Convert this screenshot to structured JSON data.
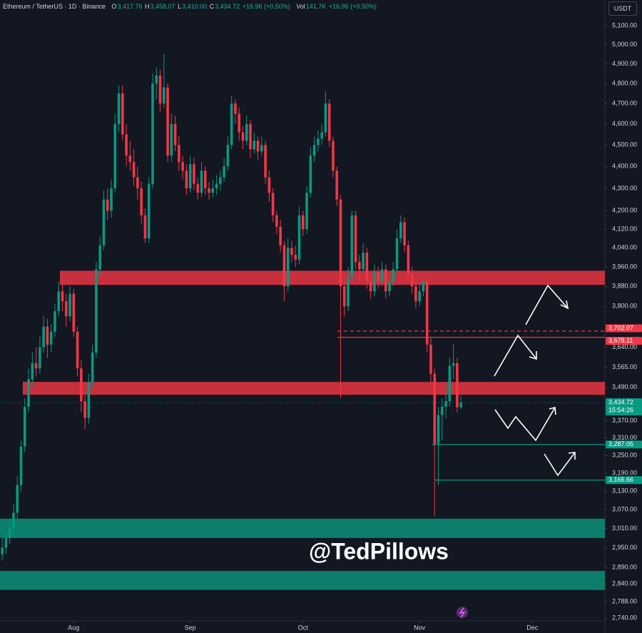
{
  "chart_data": {
    "type": "candlestick",
    "header": {
      "symbol": "Ethereum / TetherUS · 1D · Binance",
      "o_label": "O",
      "o": "3,417.76",
      "h_label": "H",
      "h": "3,458.07",
      "l_label": "L",
      "l": "3,410.00",
      "c_label": "C",
      "c": "3,434.72",
      "change": "+16.96 (+0.50%)",
      "vol_label": "Vol",
      "vol": "141.7K",
      "vol_change": "+16.96 (+0.50%)"
    },
    "currency": "USDT",
    "watermark": "@TedPillows",
    "up_color": "#089981",
    "down_color": "#f23645",
    "log_scale": true,
    "xlim": [
      -0.6,
      160.3
    ],
    "ylim": [
      2732,
      5239
    ],
    "xticks": [
      {
        "value": 19,
        "label": "Aug"
      },
      {
        "value": 50,
        "label": "Sep"
      },
      {
        "value": 80,
        "label": "Oct"
      },
      {
        "value": 111,
        "label": "Nov"
      },
      {
        "value": 141,
        "label": "Dec"
      }
    ],
    "yticks": [
      {
        "value": 5100,
        "label": "5,100.00"
      },
      {
        "value": 5000,
        "label": "5,000.00"
      },
      {
        "value": 4900,
        "label": "4,900.00"
      },
      {
        "value": 4800,
        "label": "4,800.00"
      },
      {
        "value": 4700,
        "label": "4,700.00"
      },
      {
        "value": 4600,
        "label": "4,600.00"
      },
      {
        "value": 4500,
        "label": "4,500.00"
      },
      {
        "value": 4400,
        "label": "4,400.00"
      },
      {
        "value": 4300,
        "label": "4,300.00"
      },
      {
        "value": 4200,
        "label": "4,200.00"
      },
      {
        "value": 4120,
        "label": "4,120.00"
      },
      {
        "value": 4040,
        "label": "4,040.00"
      },
      {
        "value": 3960,
        "label": "3,960.00"
      },
      {
        "value": 3880,
        "label": "3,880.00"
      },
      {
        "value": 3800,
        "label": "3,800.00"
      },
      {
        "value": 3640,
        "label": "3,640.00"
      },
      {
        "value": 3565,
        "label": "3,565.00"
      },
      {
        "value": 3490,
        "label": "3,490.00"
      },
      {
        "value": 3370,
        "label": "3,370.00"
      },
      {
        "value": 3310,
        "label": "3,310.00"
      },
      {
        "value": 3250,
        "label": "3,250.00"
      },
      {
        "value": 3190,
        "label": "3,190.00"
      },
      {
        "value": 3130,
        "label": "3,130.00"
      },
      {
        "value": 3070,
        "label": "3,070.00"
      },
      {
        "value": 3010,
        "label": "3,010.00"
      },
      {
        "value": 2950,
        "label": "2,950.00"
      },
      {
        "value": 2890,
        "label": "2,890.00"
      },
      {
        "value": 2840,
        "label": "2,840.00"
      },
      {
        "value": 2788,
        "label": "2,788.00"
      },
      {
        "value": 2740,
        "label": "2,740.00"
      }
    ],
    "zones": [
      {
        "low": 3886,
        "high": 3944,
        "color": "#c8303d"
      },
      {
        "low": 3463,
        "high": 3510,
        "color": "#c8303d"
      },
      {
        "low": 2980,
        "high": 3041,
        "color": "#0b7e6c"
      },
      {
        "low": 2822,
        "high": 2879,
        "color": "#0b7e6c"
      }
    ],
    "levels": [
      {
        "value": 3702.07,
        "label": "3,702.07",
        "color": "#f23645",
        "style": "dashed"
      },
      {
        "value": 3678.11,
        "label": "3,678.11",
        "color": "#f23645",
        "style": "solid"
      },
      {
        "value": 3287.05,
        "label": "3,287.05",
        "color": "#089981",
        "style": "solid"
      },
      {
        "value": 3166.66,
        "label": "3,166.66",
        "color": "#089981",
        "style": "solid"
      }
    ],
    "last": {
      "value": 3434.72,
      "label": "3,434.72",
      "countdown": "15:54:26"
    },
    "ohlc": [
      [
        2930,
        2980,
        2910,
        2950
      ],
      [
        2950,
        3000,
        2930,
        2980
      ],
      [
        2980,
        3040,
        2960,
        3010
      ],
      [
        3010,
        3090,
        2990,
        3060
      ],
      [
        3060,
        3180,
        3040,
        3150
      ],
      [
        3150,
        3300,
        3130,
        3280
      ],
      [
        3280,
        3450,
        3260,
        3420
      ],
      [
        3420,
        3560,
        3400,
        3520
      ],
      [
        3520,
        3620,
        3490,
        3580
      ],
      [
        3580,
        3640,
        3530,
        3560
      ],
      [
        3560,
        3680,
        3540,
        3640
      ],
      [
        3640,
        3760,
        3620,
        3720
      ],
      [
        3720,
        3750,
        3600,
        3650
      ],
      [
        3650,
        3730,
        3620,
        3700
      ],
      [
        3700,
        3810,
        3680,
        3780
      ],
      [
        3780,
        3900,
        3760,
        3860
      ],
      [
        3860,
        3890,
        3780,
        3820
      ],
      [
        3820,
        3850,
        3720,
        3760
      ],
      [
        3760,
        3880,
        3740,
        3850
      ],
      [
        3850,
        3870,
        3680,
        3700
      ],
      [
        3700,
        3720,
        3530,
        3560
      ],
      [
        3560,
        3590,
        3400,
        3440
      ],
      [
        3440,
        3470,
        3340,
        3380
      ],
      [
        3380,
        3540,
        3360,
        3510
      ],
      [
        3510,
        3650,
        3490,
        3620
      ],
      [
        3620,
        3980,
        3600,
        3950
      ],
      [
        3950,
        4090,
        3920,
        4050
      ],
      [
        4050,
        4290,
        4030,
        4250
      ],
      [
        4250,
        4300,
        4160,
        4200
      ],
      [
        4200,
        4340,
        4170,
        4300
      ],
      [
        4300,
        4650,
        4280,
        4600
      ],
      [
        4600,
        4790,
        4560,
        4750
      ],
      [
        4750,
        4790,
        4520,
        4550
      ],
      [
        4550,
        4600,
        4400,
        4450
      ],
      [
        4450,
        4520,
        4380,
        4420
      ],
      [
        4420,
        4480,
        4310,
        4350
      ],
      [
        4350,
        4400,
        4250,
        4300
      ],
      [
        4300,
        4330,
        4140,
        4180
      ],
      [
        4180,
        4210,
        4060,
        4080
      ],
      [
        4080,
        4350,
        4060,
        4320
      ],
      [
        4320,
        4850,
        4300,
        4800
      ],
      [
        4800,
        4880,
        4720,
        4840
      ],
      [
        4840,
        4870,
        4660,
        4700
      ],
      [
        4700,
        4950,
        4680,
        4780
      ],
      [
        4780,
        4800,
        4420,
        4450
      ],
      [
        4450,
        4650,
        4420,
        4600
      ],
      [
        4600,
        4640,
        4470,
        4500
      ],
      [
        4500,
        4540,
        4380,
        4420
      ],
      [
        4420,
        4450,
        4340,
        4380
      ],
      [
        4380,
        4410,
        4270,
        4300
      ],
      [
        4300,
        4450,
        4280,
        4410
      ],
      [
        4410,
        4440,
        4290,
        4320
      ],
      [
        4320,
        4350,
        4250,
        4280
      ],
      [
        4280,
        4420,
        4260,
        4380
      ],
      [
        4380,
        4400,
        4270,
        4300
      ],
      [
        4300,
        4330,
        4250,
        4280
      ],
      [
        4280,
        4340,
        4260,
        4300
      ],
      [
        4300,
        4360,
        4270,
        4320
      ],
      [
        4320,
        4380,
        4290,
        4350
      ],
      [
        4350,
        4440,
        4330,
        4400
      ],
      [
        4400,
        4540,
        4380,
        4500
      ],
      [
        4500,
        4740,
        4480,
        4700
      ],
      [
        4700,
        4720,
        4600,
        4650
      ],
      [
        4650,
        4680,
        4520,
        4560
      ],
      [
        4560,
        4590,
        4480,
        4520
      ],
      [
        4520,
        4640,
        4500,
        4600
      ],
      [
        4600,
        4620,
        4440,
        4480
      ],
      [
        4480,
        4560,
        4460,
        4520
      ],
      [
        4520,
        4540,
        4430,
        4470
      ],
      [
        4470,
        4540,
        4450,
        4500
      ],
      [
        4500,
        4520,
        4320,
        4350
      ],
      [
        4350,
        4380,
        4240,
        4280
      ],
      [
        4280,
        4300,
        4150,
        4180
      ],
      [
        4180,
        4200,
        4100,
        4130
      ],
      [
        4130,
        4160,
        4020,
        4050
      ],
      [
        4050,
        4070,
        3820,
        3880
      ],
      [
        3880,
        4080,
        3860,
        4040
      ],
      [
        4040,
        4070,
        3980,
        4010
      ],
      [
        4010,
        4050,
        3960,
        3990
      ],
      [
        3990,
        4220,
        3970,
        4180
      ],
      [
        4180,
        4200,
        4090,
        4120
      ],
      [
        4120,
        4310,
        4100,
        4280
      ],
      [
        4280,
        4490,
        4260,
        4450
      ],
      [
        4450,
        4540,
        4420,
        4500
      ],
      [
        4500,
        4570,
        4470,
        4530
      ],
      [
        4530,
        4600,
        4500,
        4560
      ],
      [
        4560,
        4760,
        4540,
        4700
      ],
      [
        4700,
        4720,
        4490,
        4520
      ],
      [
        4520,
        4540,
        4350,
        4380
      ],
      [
        4380,
        4400,
        4220,
        4250
      ],
      [
        4250,
        4270,
        3450,
        3880
      ],
      [
        3880,
        3920,
        3760,
        3800
      ],
      [
        3800,
        3960,
        3780,
        3920
      ],
      [
        3920,
        4200,
        3900,
        4180
      ],
      [
        4180,
        4200,
        3950,
        3980
      ],
      [
        3980,
        4010,
        3900,
        3950
      ],
      [
        3950,
        4060,
        3930,
        4020
      ],
      [
        4020,
        4040,
        3870,
        3900
      ],
      [
        3900,
        3920,
        3830,
        3860
      ],
      [
        3860,
        3970,
        3840,
        3940
      ],
      [
        3940,
        3960,
        3870,
        3900
      ],
      [
        3900,
        3980,
        3880,
        3950
      ],
      [
        3950,
        3970,
        3830,
        3860
      ],
      [
        3860,
        3930,
        3840,
        3900
      ],
      [
        3900,
        3980,
        3880,
        3950
      ],
      [
        3950,
        4120,
        3930,
        4080
      ],
      [
        4080,
        4180,
        4060,
        4150
      ],
      [
        4150,
        4170,
        4020,
        4050
      ],
      [
        4050,
        4070,
        3900,
        3930
      ],
      [
        3930,
        3960,
        3850,
        3880
      ],
      [
        3880,
        3900,
        3790,
        3820
      ],
      [
        3820,
        3890,
        3800,
        3860
      ],
      [
        3860,
        3920,
        3840,
        3900
      ],
      [
        3900,
        3920,
        3620,
        3650
      ],
      [
        3650,
        3680,
        3500,
        3540
      ],
      [
        3540,
        3560,
        3050,
        3290
      ],
      [
        3290,
        3420,
        3150,
        3390
      ],
      [
        3390,
        3450,
        3300,
        3420
      ],
      [
        3420,
        3500,
        3380,
        3440
      ],
      [
        3440,
        3600,
        3420,
        3570
      ],
      [
        3570,
        3650,
        3520,
        3580
      ],
      [
        3580,
        3600,
        3400,
        3417.76
      ],
      [
        3417.76,
        3458.07,
        3410,
        3434.72
      ]
    ]
  }
}
